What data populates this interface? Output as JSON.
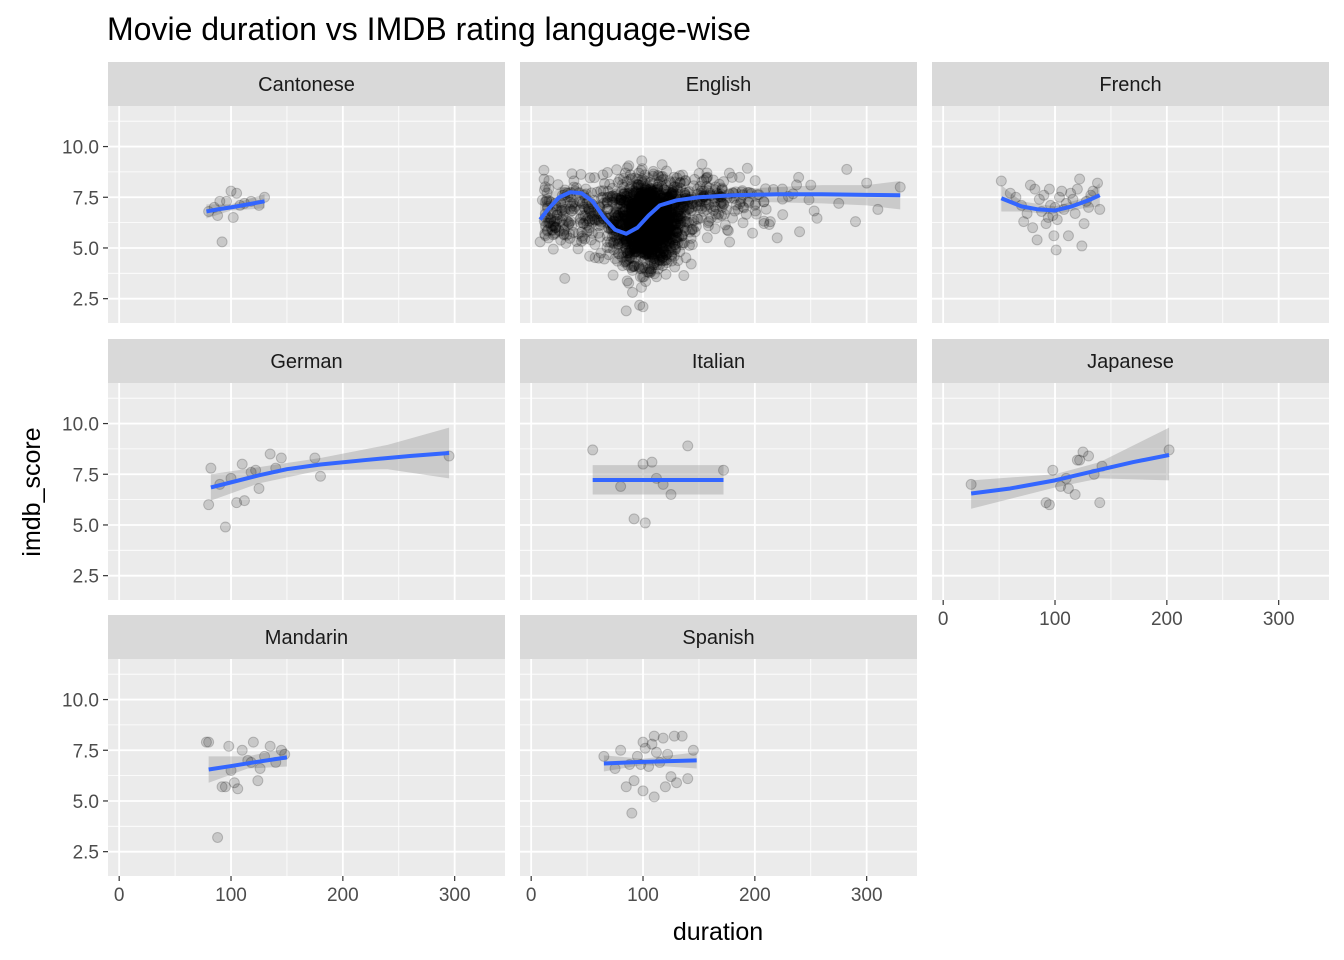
{
  "chart_data": {
    "type": "scatter",
    "title": "Movie duration vs IMDB rating language-wise",
    "xlabel": "duration",
    "ylabel": "imdb_score",
    "xlim": [
      -10,
      345
    ],
    "ylim": [
      1.3,
      12.0
    ],
    "x_ticks": [
      0,
      100,
      200,
      300
    ],
    "y_ticks": [
      2.5,
      5.0,
      7.5,
      10.0
    ],
    "y_tick_labels": [
      "2.5",
      "5.0",
      "7.5",
      "10.0"
    ],
    "x_tick_labels": [
      "0",
      "100",
      "200",
      "300"
    ],
    "grid": true,
    "facet_layout": "3x3",
    "point_color": "#000000",
    "point_alpha": 0.15,
    "smooth_color": "#3366FF",
    "band_color": "#999999",
    "panel_background": "#EBEBEB",
    "strip_background": "#D9D9D9",
    "facets": [
      {
        "name": "Cantonese",
        "points": [
          [
            80,
            6.8
          ],
          [
            85,
            7.0
          ],
          [
            88,
            6.6
          ],
          [
            90,
            7.3
          ],
          [
            92,
            5.3
          ],
          [
            96,
            7.3
          ],
          [
            100,
            7.8
          ],
          [
            102,
            6.5
          ],
          [
            105,
            7.7
          ],
          [
            108,
            7.1
          ],
          [
            112,
            7.2
          ],
          [
            118,
            7.3
          ],
          [
            125,
            7.1
          ],
          [
            130,
            7.5
          ]
        ],
        "smooth": [
          [
            78,
            6.8
          ],
          [
            90,
            6.92
          ],
          [
            100,
            7.0
          ],
          [
            110,
            7.1
          ],
          [
            120,
            7.2
          ],
          [
            130,
            7.3
          ]
        ],
        "band": [
          [
            78,
            6.45,
            7.15
          ],
          [
            100,
            6.85,
            7.15
          ],
          [
            130,
            6.95,
            7.65
          ]
        ]
      },
      {
        "name": "English",
        "points": [],
        "smooth": [
          [
            8,
            6.4
          ],
          [
            15,
            6.9
          ],
          [
            25,
            7.5
          ],
          [
            35,
            7.75
          ],
          [
            45,
            7.7
          ],
          [
            55,
            7.3
          ],
          [
            65,
            6.5
          ],
          [
            75,
            5.9
          ],
          [
            85,
            5.7
          ],
          [
            95,
            6.0
          ],
          [
            105,
            6.6
          ],
          [
            115,
            7.1
          ],
          [
            130,
            7.35
          ],
          [
            150,
            7.5
          ],
          [
            180,
            7.6
          ],
          [
            220,
            7.65
          ],
          [
            260,
            7.65
          ],
          [
            300,
            7.62
          ],
          [
            330,
            7.6
          ]
        ],
        "band": [
          [
            8,
            5.6,
            7.2
          ],
          [
            25,
            7.0,
            8.0
          ],
          [
            45,
            7.4,
            8.0
          ],
          [
            65,
            6.0,
            7.0
          ],
          [
            85,
            5.55,
            5.85
          ],
          [
            105,
            6.5,
            6.7
          ],
          [
            130,
            7.2,
            7.5
          ],
          [
            180,
            7.3,
            7.9
          ],
          [
            260,
            7.2,
            8.1
          ],
          [
            300,
            7.1,
            8.1
          ],
          [
            330,
            6.9,
            8.3
          ]
        ]
      },
      {
        "name": "French",
        "points": [
          [
            52,
            8.3
          ],
          [
            60,
            7.7
          ],
          [
            65,
            7.5
          ],
          [
            70,
            7.1
          ],
          [
            72,
            6.3
          ],
          [
            75,
            6.7
          ],
          [
            78,
            8.1
          ],
          [
            80,
            6.0
          ],
          [
            82,
            7.9
          ],
          [
            84,
            5.4
          ],
          [
            86,
            7.4
          ],
          [
            88,
            6.8
          ],
          [
            90,
            7.6
          ],
          [
            92,
            6.2
          ],
          [
            94,
            6.5
          ],
          [
            95,
            7.9
          ],
          [
            96,
            7.1
          ],
          [
            98,
            6.6
          ],
          [
            99,
            5.6
          ],
          [
            100,
            7.0
          ],
          [
            101,
            4.9
          ],
          [
            102,
            6.4
          ],
          [
            104,
            7.5
          ],
          [
            106,
            7.8
          ],
          [
            108,
            6.9
          ],
          [
            110,
            7.2
          ],
          [
            112,
            5.6
          ],
          [
            114,
            7.7
          ],
          [
            116,
            7.4
          ],
          [
            118,
            6.7
          ],
          [
            120,
            7.9
          ],
          [
            122,
            8.4
          ],
          [
            124,
            5.1
          ],
          [
            126,
            6.2
          ],
          [
            128,
            7.3
          ],
          [
            130,
            7.0
          ],
          [
            132,
            7.6
          ],
          [
            134,
            7.8
          ],
          [
            138,
            8.2
          ],
          [
            140,
            6.9
          ]
        ],
        "smooth": [
          [
            52,
            7.45
          ],
          [
            70,
            7.05
          ],
          [
            85,
            6.9
          ],
          [
            100,
            6.85
          ],
          [
            115,
            7.05
          ],
          [
            130,
            7.35
          ],
          [
            140,
            7.6
          ]
        ],
        "band": [
          [
            52,
            6.8,
            8.1
          ],
          [
            70,
            6.8,
            7.3
          ],
          [
            100,
            6.65,
            7.05
          ],
          [
            125,
            6.95,
            7.45
          ],
          [
            140,
            7.05,
            8.2
          ]
        ]
      },
      {
        "name": "German",
        "points": [
          [
            80,
            6.0
          ],
          [
            82,
            7.8
          ],
          [
            90,
            7.0
          ],
          [
            95,
            4.9
          ],
          [
            100,
            7.3
          ],
          [
            105,
            6.1
          ],
          [
            110,
            8.0
          ],
          [
            112,
            6.2
          ],
          [
            118,
            7.6
          ],
          [
            122,
            7.7
          ],
          [
            125,
            6.8
          ],
          [
            135,
            8.5
          ],
          [
            140,
            7.8
          ],
          [
            145,
            8.3
          ],
          [
            175,
            8.3
          ],
          [
            180,
            7.4
          ],
          [
            295,
            8.4
          ]
        ],
        "smooth": [
          [
            82,
            6.85
          ],
          [
            100,
            7.1
          ],
          [
            125,
            7.45
          ],
          [
            150,
            7.75
          ],
          [
            180,
            7.98
          ],
          [
            220,
            8.2
          ],
          [
            260,
            8.4
          ],
          [
            295,
            8.55
          ]
        ],
        "band": [
          [
            82,
            6.2,
            7.5
          ],
          [
            125,
            7.05,
            7.85
          ],
          [
            180,
            7.7,
            8.3
          ],
          [
            240,
            7.75,
            8.95
          ],
          [
            295,
            7.3,
            9.8
          ]
        ]
      },
      {
        "name": "Italian",
        "points": [
          [
            55,
            8.7
          ],
          [
            80,
            6.9
          ],
          [
            92,
            5.3
          ],
          [
            100,
            8.0
          ],
          [
            102,
            5.1
          ],
          [
            108,
            8.1
          ],
          [
            112,
            7.3
          ],
          [
            118,
            7.0
          ],
          [
            125,
            6.5
          ],
          [
            140,
            8.9
          ],
          [
            172,
            7.7
          ]
        ],
        "smooth": [
          [
            55,
            7.22
          ],
          [
            172,
            7.22
          ]
        ],
        "band": [
          [
            55,
            6.5,
            7.95
          ],
          [
            172,
            6.5,
            7.95
          ]
        ]
      },
      {
        "name": "Japanese",
        "points": [
          [
            25,
            7.0
          ],
          [
            92,
            6.1
          ],
          [
            95,
            6.0
          ],
          [
            98,
            7.7
          ],
          [
            105,
            6.9
          ],
          [
            110,
            7.3
          ],
          [
            112,
            6.8
          ],
          [
            118,
            6.5
          ],
          [
            120,
            8.2
          ],
          [
            122,
            8.2
          ],
          [
            125,
            8.6
          ],
          [
            130,
            8.4
          ],
          [
            135,
            7.5
          ],
          [
            140,
            6.1
          ],
          [
            142,
            7.9
          ],
          [
            202,
            8.7
          ]
        ],
        "smooth": [
          [
            25,
            6.55
          ],
          [
            60,
            6.8
          ],
          [
            100,
            7.2
          ],
          [
            140,
            7.72
          ],
          [
            170,
            8.1
          ],
          [
            202,
            8.45
          ]
        ],
        "band": [
          [
            25,
            5.8,
            7.2
          ],
          [
            100,
            6.85,
            7.5
          ],
          [
            140,
            7.3,
            8.1
          ],
          [
            202,
            7.2,
            9.8
          ]
        ]
      },
      {
        "name": "Mandarin",
        "points": [
          [
            78,
            7.9
          ],
          [
            80,
            7.9
          ],
          [
            92,
            5.7
          ],
          [
            95,
            5.7
          ],
          [
            98,
            7.7
          ],
          [
            100,
            6.5
          ],
          [
            103,
            5.9
          ],
          [
            106,
            5.6
          ],
          [
            110,
            7.5
          ],
          [
            115,
            7.0
          ],
          [
            118,
            6.9
          ],
          [
            120,
            7.9
          ],
          [
            124,
            6.0
          ],
          [
            126,
            6.6
          ],
          [
            130,
            7.2
          ],
          [
            135,
            7.7
          ],
          [
            140,
            6.9
          ],
          [
            145,
            7.5
          ],
          [
            148,
            7.3
          ],
          [
            88,
            3.2
          ]
        ],
        "smooth": [
          [
            80,
            6.55
          ],
          [
            100,
            6.72
          ],
          [
            120,
            6.9
          ],
          [
            150,
            7.15
          ]
        ],
        "band": [
          [
            80,
            5.9,
            7.2
          ],
          [
            115,
            6.6,
            7.2
          ],
          [
            150,
            6.7,
            7.6
          ]
        ]
      },
      {
        "name": "Spanish",
        "points": [
          [
            65,
            7.2
          ],
          [
            75,
            6.6
          ],
          [
            80,
            7.5
          ],
          [
            85,
            5.7
          ],
          [
            88,
            6.8
          ],
          [
            90,
            4.4
          ],
          [
            92,
            6.0
          ],
          [
            95,
            7.2
          ],
          [
            98,
            6.8
          ],
          [
            100,
            5.5
          ],
          [
            102,
            7.6
          ],
          [
            105,
            6.7
          ],
          [
            108,
            7.8
          ],
          [
            110,
            8.2
          ],
          [
            112,
            7.4
          ],
          [
            115,
            6.9
          ],
          [
            118,
            8.1
          ],
          [
            120,
            5.7
          ],
          [
            122,
            7.3
          ],
          [
            125,
            6.2
          ],
          [
            128,
            8.2
          ],
          [
            130,
            5.9
          ],
          [
            135,
            8.2
          ],
          [
            140,
            6.1
          ],
          [
            145,
            7.5
          ],
          [
            110,
            5.2
          ],
          [
            100,
            7.9
          ]
        ],
        "smooth": [
          [
            65,
            6.85
          ],
          [
            100,
            6.93
          ],
          [
            148,
            7.0
          ]
        ],
        "band": [
          [
            65,
            6.45,
            7.25
          ],
          [
            100,
            6.78,
            7.08
          ],
          [
            148,
            6.6,
            7.4
          ]
        ]
      }
    ]
  }
}
